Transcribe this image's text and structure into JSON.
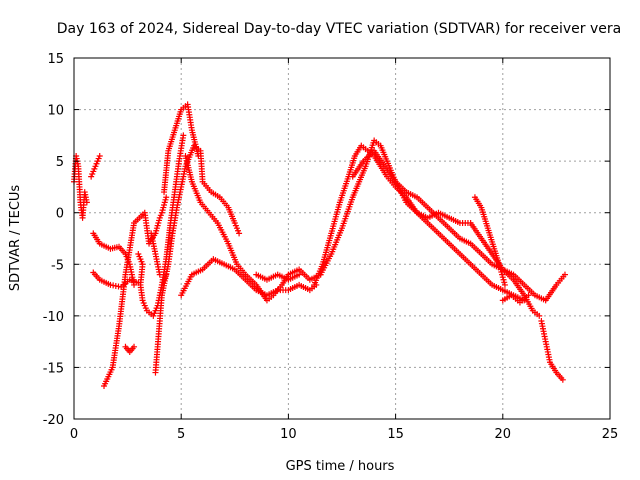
{
  "chart_data": {
    "type": "scatter",
    "title": "Day 163 of 2024, Sidereal Day-to-day VTEC variation (SDTVAR) for receiver vera",
    "xlabel": "GPS time / hours",
    "ylabel": "SDTVAR / TECUs",
    "xlim": [
      0,
      25
    ],
    "ylim": [
      -20,
      15
    ],
    "xticks": [
      0,
      5,
      10,
      15,
      20,
      25
    ],
    "yticks": [
      -20,
      -15,
      -10,
      -5,
      0,
      5,
      10,
      15
    ],
    "grid": true,
    "marker": "+",
    "color": "#ff0000",
    "series": [
      {
        "name": "trace1",
        "points": [
          [
            0,
            3.0
          ],
          [
            0.1,
            5.5
          ],
          [
            0.2,
            4.5
          ],
          [
            0.3,
            1.0
          ],
          [
            0.4,
            -0.5
          ],
          [
            0.5,
            2.0
          ],
          [
            0.6,
            1.0
          ]
        ]
      },
      {
        "name": "trace2",
        "points": [
          [
            0.8,
            3.5
          ],
          [
            1.0,
            4.5
          ],
          [
            1.2,
            5.5
          ]
        ]
      },
      {
        "name": "trace3",
        "points": [
          [
            0.9,
            -2.0
          ],
          [
            1.2,
            -3.0
          ],
          [
            1.7,
            -3.5
          ],
          [
            2.1,
            -3.3
          ],
          [
            2.4,
            -4.0
          ],
          [
            2.6,
            -5.0
          ],
          [
            2.7,
            -6.0
          ],
          [
            2.8,
            -7.0
          ]
        ]
      },
      {
        "name": "trace4",
        "points": [
          [
            0.9,
            -5.8
          ],
          [
            1.2,
            -6.5
          ],
          [
            1.7,
            -7.0
          ],
          [
            2.2,
            -7.2
          ],
          [
            2.6,
            -6.5
          ],
          [
            3.0,
            -6.8
          ]
        ]
      },
      {
        "name": "trace5",
        "points": [
          [
            1.4,
            -16.8
          ],
          [
            1.8,
            -15.0
          ],
          [
            2.1,
            -11.0
          ],
          [
            2.4,
            -6.0
          ],
          [
            2.8,
            -1.0
          ],
          [
            3.3,
            0.0
          ],
          [
            3.5,
            -3.0
          ],
          [
            3.8,
            -2.0
          ],
          [
            4.0,
            -0.5
          ],
          [
            4.1,
            0.0
          ],
          [
            4.3,
            1.5
          ]
        ]
      },
      {
        "name": "trace6",
        "points": [
          [
            2.4,
            -13.0
          ],
          [
            2.6,
            -13.5
          ],
          [
            2.8,
            -13.0
          ]
        ]
      },
      {
        "name": "trace7",
        "points": [
          [
            3.0,
            -4.0
          ],
          [
            3.2,
            -5.0
          ],
          [
            3.1,
            -7.0
          ],
          [
            3.2,
            -8.5
          ],
          [
            3.4,
            -9.5
          ],
          [
            3.7,
            -10.0
          ],
          [
            3.9,
            -9.0
          ],
          [
            4.1,
            -7.0
          ],
          [
            4.3,
            -6.0
          ]
        ]
      },
      {
        "name": "trace8",
        "points": [
          [
            3.8,
            -15.5
          ],
          [
            3.9,
            -13.0
          ],
          [
            4.0,
            -10.5
          ],
          [
            4.1,
            -8.0
          ],
          [
            4.4,
            -5.0
          ],
          [
            4.6,
            -2.0
          ],
          [
            4.8,
            0.5
          ],
          [
            5.0,
            2.5
          ],
          [
            5.2,
            4.5
          ],
          [
            5.6,
            6.5
          ],
          [
            5.9,
            6.0
          ],
          [
            6.0,
            3.0
          ],
          [
            6.4,
            2.0
          ],
          [
            6.8,
            1.5
          ],
          [
            7.2,
            0.5
          ],
          [
            7.5,
            -1.0
          ],
          [
            7.7,
            -2.0
          ]
        ]
      },
      {
        "name": "trace9",
        "points": [
          [
            4.1,
            -7.0
          ],
          [
            4.3,
            -4.5
          ],
          [
            4.5,
            -1.0
          ],
          [
            4.7,
            2.0
          ],
          [
            4.9,
            5.0
          ],
          [
            5.1,
            7.5
          ]
        ]
      },
      {
        "name": "trace10",
        "points": [
          [
            4.2,
            2.0
          ],
          [
            4.4,
            6.0
          ],
          [
            4.7,
            8.0
          ],
          [
            5.0,
            10.0
          ],
          [
            5.3,
            10.5
          ],
          [
            5.5,
            8.0
          ],
          [
            5.8,
            5.5
          ]
        ]
      },
      {
        "name": "trace11",
        "points": [
          [
            3.6,
            -2.0
          ],
          [
            3.8,
            -4.0
          ],
          [
            4.0,
            -6.0
          ]
        ]
      },
      {
        "name": "trace12",
        "points": [
          [
            5.2,
            5.5
          ],
          [
            5.5,
            3.0
          ],
          [
            5.9,
            1.0
          ],
          [
            6.3,
            0.0
          ],
          [
            6.7,
            -1.0
          ],
          [
            7.2,
            -3.0
          ],
          [
            7.6,
            -5.0
          ],
          [
            8.0,
            -6.0
          ],
          [
            8.5,
            -7.0
          ],
          [
            9.0,
            -8.5
          ],
          [
            9.3,
            -8.0
          ],
          [
            9.7,
            -7.0
          ],
          [
            10.0,
            -6.0
          ],
          [
            10.5,
            -5.5
          ],
          [
            11.0,
            -6.5
          ],
          [
            11.5,
            -6.0
          ]
        ]
      },
      {
        "name": "trace13",
        "points": [
          [
            5.0,
            -8.0
          ],
          [
            5.5,
            -6.0
          ],
          [
            6.0,
            -5.5
          ],
          [
            6.5,
            -4.5
          ],
          [
            7.0,
            -5.0
          ],
          [
            7.5,
            -5.5
          ],
          [
            8.0,
            -6.5
          ],
          [
            8.5,
            -7.5
          ],
          [
            9.0,
            -8.0
          ],
          [
            9.5,
            -7.5
          ],
          [
            10.0,
            -7.5
          ],
          [
            10.5,
            -7.0
          ],
          [
            11.0,
            -7.5
          ],
          [
            11.3,
            -7.0
          ]
        ]
      },
      {
        "name": "trace14",
        "points": [
          [
            8.5,
            -6.0
          ],
          [
            9.0,
            -6.5
          ],
          [
            9.5,
            -6.0
          ],
          [
            10.0,
            -6.5
          ],
          [
            10.5,
            -6.0
          ]
        ]
      },
      {
        "name": "trace15",
        "points": [
          [
            11.2,
            -7.0
          ],
          [
            11.6,
            -5.0
          ],
          [
            12.0,
            -2.0
          ],
          [
            12.4,
            1.0
          ],
          [
            12.8,
            3.5
          ],
          [
            13.1,
            5.5
          ],
          [
            13.4,
            6.5
          ],
          [
            13.7,
            6.0
          ],
          [
            14.0,
            5.5
          ],
          [
            14.3,
            4.5
          ],
          [
            14.6,
            3.5
          ],
          [
            15.0,
            2.5
          ],
          [
            15.5,
            1.5
          ],
          [
            16.0,
            0.0
          ],
          [
            16.5,
            -1.0
          ],
          [
            17.0,
            -2.0
          ],
          [
            17.5,
            -3.0
          ],
          [
            18.0,
            -4.0
          ],
          [
            18.5,
            -5.0
          ],
          [
            19.0,
            -6.0
          ],
          [
            19.5,
            -7.0
          ],
          [
            20.0,
            -7.5
          ],
          [
            20.5,
            -8.0
          ],
          [
            21.0,
            -8.5
          ]
        ]
      },
      {
        "name": "trace16",
        "points": [
          [
            11.5,
            -6.0
          ],
          [
            12.0,
            -4.0
          ],
          [
            12.5,
            -1.5
          ],
          [
            13.0,
            1.5
          ],
          [
            13.3,
            3.0
          ],
          [
            13.6,
            4.5
          ],
          [
            14.0,
            7.0
          ],
          [
            14.3,
            6.5
          ],
          [
            14.6,
            5.0
          ],
          [
            15.0,
            3.0
          ],
          [
            15.5,
            1.0
          ],
          [
            16.0,
            0.0
          ],
          [
            16.5,
            -0.5
          ],
          [
            17.0,
            0.0
          ],
          [
            17.5,
            -0.5
          ],
          [
            18.0,
            -1.0
          ],
          [
            18.5,
            -1.0
          ],
          [
            19.0,
            -2.5
          ],
          [
            19.5,
            -4.0
          ],
          [
            20.0,
            -5.5
          ],
          [
            20.5,
            -6.0
          ],
          [
            21.0,
            -7.0
          ],
          [
            21.5,
            -8.0
          ],
          [
            22.0,
            -8.5
          ],
          [
            22.5,
            -7.0
          ],
          [
            22.9,
            -6.0
          ]
        ]
      },
      {
        "name": "trace17",
        "points": [
          [
            13.0,
            3.5
          ],
          [
            13.5,
            5.0
          ],
          [
            14.0,
            6.0
          ],
          [
            14.5,
            4.5
          ],
          [
            15.0,
            3.0
          ],
          [
            15.5,
            2.0
          ],
          [
            16.0,
            1.5
          ],
          [
            16.5,
            0.5
          ],
          [
            17.0,
            -0.5
          ],
          [
            17.5,
            -1.5
          ],
          [
            18.0,
            -2.5
          ],
          [
            18.5,
            -3.0
          ],
          [
            19.0,
            -4.0
          ],
          [
            19.5,
            -5.0
          ],
          [
            20.0,
            -5.5
          ],
          [
            20.5,
            -6.5
          ],
          [
            21.0,
            -8.0
          ],
          [
            21.4,
            -9.5
          ],
          [
            21.7,
            -10.0
          ]
        ]
      },
      {
        "name": "trace18",
        "points": [
          [
            18.7,
            1.5
          ],
          [
            19.0,
            0.5
          ],
          [
            19.3,
            -1.5
          ],
          [
            19.6,
            -3.5
          ],
          [
            19.9,
            -5.5
          ],
          [
            20.1,
            -7.0
          ]
        ]
      },
      {
        "name": "trace19",
        "points": [
          [
            21.8,
            -10.5
          ],
          [
            22.0,
            -12.5
          ],
          [
            22.2,
            -14.5
          ],
          [
            22.5,
            -15.5
          ],
          [
            22.8,
            -16.2
          ]
        ]
      },
      {
        "name": "trace20",
        "points": [
          [
            20.0,
            -8.5
          ],
          [
            20.4,
            -8.0
          ],
          [
            20.8,
            -8.7
          ],
          [
            21.2,
            -8.0
          ]
        ]
      }
    ]
  }
}
